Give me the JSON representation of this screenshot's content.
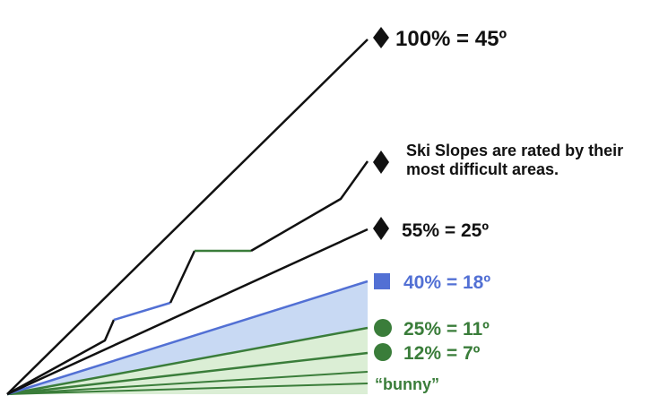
{
  "colors": {
    "black": "#111111",
    "blue": "#5270d4",
    "green": "#3a7d3a",
    "blue_fill": "#c8d9f3",
    "green_fill": "#dbeed5"
  },
  "ratings": [
    {
      "key": "double_black",
      "symbol": "diamond-icon",
      "text": "100% = 45º",
      "color": "#111111"
    },
    {
      "key": "black",
      "symbol": "diamond-icon",
      "text": "55% = 25º",
      "color": "#111111"
    },
    {
      "key": "blue",
      "symbol": "square-icon",
      "text": "40% = 18º",
      "color": "#5270d4"
    },
    {
      "key": "green_steep",
      "symbol": "circle-icon",
      "text": "25% = 11º",
      "color": "#3a7d3a"
    },
    {
      "key": "green_mild",
      "symbol": "circle-icon",
      "text": "12% = 7º",
      "color": "#3a7d3a"
    },
    {
      "key": "bunny",
      "symbol": "",
      "text": "“bunny”",
      "color": "#3a7d3a"
    }
  ],
  "note": {
    "line1": "Ski Slopes are rated by their",
    "line2": "most difficult areas."
  }
}
